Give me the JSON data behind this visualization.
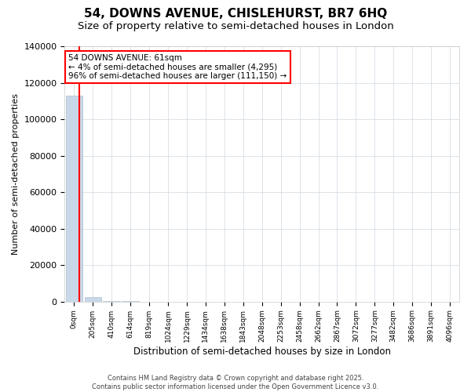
{
  "title": "54, DOWNS AVENUE, CHISLEHURST, BR7 6HQ",
  "subtitle": "Size of property relative to semi-detached houses in London",
  "xlabel": "Distribution of semi-detached houses by size in London",
  "ylabel": "Number of semi-detached properties",
  "bar_labels": [
    "0sqm",
    "205sqm",
    "410sqm",
    "614sqm",
    "819sqm",
    "1024sqm",
    "1229sqm",
    "1434sqm",
    "1638sqm",
    "1843sqm",
    "2048sqm",
    "2253sqm",
    "2458sqm",
    "2662sqm",
    "2867sqm",
    "3072sqm",
    "3277sqm",
    "3482sqm",
    "3686sqm",
    "3891sqm",
    "4096sqm"
  ],
  "bar_heights": [
    113000,
    2200,
    300,
    80,
    30,
    15,
    8,
    5,
    3,
    2,
    1,
    1,
    1,
    0,
    0,
    0,
    0,
    0,
    0,
    0,
    0
  ],
  "bar_color": "#c8d8e8",
  "bar_edge_color": "#a8bfcf",
  "ylim": [
    0,
    140000
  ],
  "property_sqm": 61,
  "annotation_text_line1": "54 DOWNS AVENUE: 61sqm",
  "annotation_text_line2": "← 4% of semi-detached houses are smaller (4,295)",
  "annotation_text_line3": "96% of semi-detached houses are larger (111,150) →",
  "red_line_x": 0.28,
  "footer_line1": "Contains HM Land Registry data © Crown copyright and database right 2025.",
  "footer_line2": "Contains public sector information licensed under the Open Government Licence v3.0.",
  "title_fontsize": 11,
  "subtitle_fontsize": 9.5,
  "ytick_step": 20000,
  "background_color": "#ffffff",
  "grid_color": "#d0d8e0"
}
